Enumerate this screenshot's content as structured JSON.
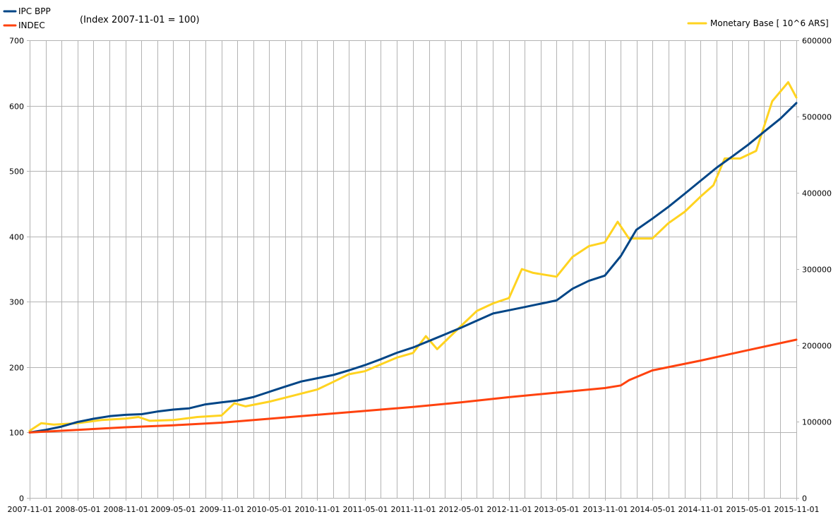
{
  "chart_data": {
    "type": "line",
    "note": "(Index 2007-11-01 = 100)",
    "grid": true,
    "legend_placement": "top-left and top-right",
    "x_ticks": [
      "2007-11-01",
      "2008-05-01",
      "2008-11-01",
      "2009-05-01",
      "2009-11-01",
      "2010-05-01",
      "2010-11-01",
      "2011-05-01",
      "2011-11-01",
      "2012-05-01",
      "2012-11-01",
      "2013-05-01",
      "2013-11-01",
      "2014-05-01",
      "2014-11-01",
      "2015-05-01",
      "2015-11-01"
    ],
    "y_left": {
      "min": 0,
      "max": 700,
      "ticks": [
        "0",
        "100",
        "200",
        "300",
        "400",
        "500",
        "600",
        "700"
      ]
    },
    "y_right": {
      "min": 0,
      "max": 600000,
      "ticks": [
        "0",
        "100000",
        "200000",
        "300000",
        "400000",
        "500000",
        "600000"
      ]
    },
    "series": [
      {
        "name": "IPC BPP",
        "color": "#004586",
        "axis": "left",
        "x": [
          "2007-11-01",
          "2008-01-01",
          "2008-03-01",
          "2008-05-01",
          "2008-07-01",
          "2008-09-01",
          "2008-11-01",
          "2009-01-01",
          "2009-03-01",
          "2009-05-01",
          "2009-07-01",
          "2009-09-01",
          "2009-11-01",
          "2010-01-01",
          "2010-03-01",
          "2010-05-01",
          "2010-07-01",
          "2010-09-01",
          "2010-11-01",
          "2011-01-01",
          "2011-03-01",
          "2011-05-01",
          "2011-07-01",
          "2011-09-01",
          "2011-11-01",
          "2012-01-01",
          "2012-03-01",
          "2012-05-01",
          "2012-07-01",
          "2012-09-01",
          "2012-11-01",
          "2013-01-01",
          "2013-03-01",
          "2013-05-01",
          "2013-07-01",
          "2013-09-01",
          "2013-11-01",
          "2014-01-01",
          "2014-03-01",
          "2014-05-01",
          "2014-07-01",
          "2014-09-01",
          "2014-11-01",
          "2015-01-01",
          "2015-03-01",
          "2015-05-01",
          "2015-07-01",
          "2015-09-01",
          "2015-11-01"
        ],
        "values": [
          100,
          104,
          109,
          116,
          121,
          125,
          127,
          128,
          132,
          135,
          137,
          143,
          146,
          149,
          154,
          162,
          170,
          178,
          183,
          188,
          195,
          203,
          212,
          222,
          230,
          240,
          250,
          260,
          271,
          282,
          287,
          292,
          297,
          302,
          320,
          332,
          340,
          370,
          410,
          427,
          445,
          465,
          485,
          505,
          522,
          540,
          560,
          580,
          604
        ]
      },
      {
        "name": "INDEC",
        "color": "#ff420e",
        "axis": "left",
        "x": [
          "2007-11-01",
          "2008-05-01",
          "2008-11-01",
          "2009-05-01",
          "2009-11-01",
          "2010-05-01",
          "2010-11-01",
          "2011-05-01",
          "2011-11-01",
          "2012-05-01",
          "2012-11-01",
          "2013-05-01",
          "2013-11-01",
          "2014-01-01",
          "2014-02-01",
          "2014-05-01",
          "2014-11-01",
          "2015-05-01",
          "2015-11-01"
        ],
        "values": [
          100,
          104,
          108,
          111,
          115,
          121,
          127,
          133,
          139,
          146,
          154,
          161,
          168,
          172,
          180,
          195,
          210,
          226,
          242
        ]
      },
      {
        "name": "Monetary Base [ 10^6 ARS]",
        "color": "#ffd320",
        "axis": "right",
        "x": [
          "2007-11-01",
          "2007-12-15",
          "2008-02-01",
          "2008-05-01",
          "2008-08-01",
          "2008-11-01",
          "2008-12-20",
          "2009-02-01",
          "2009-05-01",
          "2009-08-01",
          "2009-11-01",
          "2009-12-20",
          "2010-02-01",
          "2010-05-01",
          "2010-08-01",
          "2010-11-01",
          "2011-01-01",
          "2011-03-01",
          "2011-05-01",
          "2011-07-01",
          "2011-09-01",
          "2011-11-01",
          "2011-12-20",
          "2012-02-01",
          "2012-05-01",
          "2012-07-01",
          "2012-09-01",
          "2012-11-01",
          "2012-12-20",
          "2013-02-01",
          "2013-05-01",
          "2013-07-01",
          "2013-09-01",
          "2013-11-01",
          "2013-12-20",
          "2014-02-01",
          "2014-05-01",
          "2014-07-01",
          "2014-09-01",
          "2014-11-01",
          "2014-12-20",
          "2015-02-01",
          "2015-04-01",
          "2015-06-01",
          "2015-08-01",
          "2015-10-01",
          "2015-11-01"
        ],
        "values": [
          88000,
          98000,
          96000,
          98000,
          102000,
          104000,
          106000,
          101000,
          102000,
          106000,
          108000,
          124000,
          120000,
          126000,
          134000,
          142000,
          152000,
          162000,
          166000,
          175000,
          184000,
          190000,
          212000,
          195000,
          225000,
          245000,
          255000,
          262000,
          300000,
          295000,
          290000,
          316000,
          330000,
          335000,
          362000,
          340000,
          340000,
          360000,
          375000,
          395000,
          410000,
          445000,
          445000,
          455000,
          520000,
          545000,
          525000
        ]
      }
    ]
  }
}
